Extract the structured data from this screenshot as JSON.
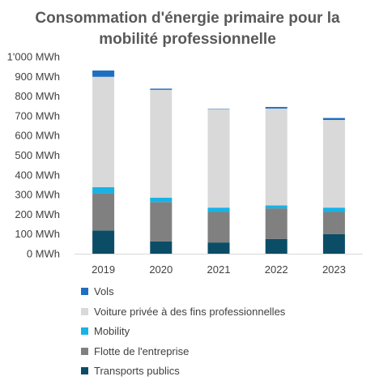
{
  "chart_data": {
    "type": "bar",
    "stacked": true,
    "title": "Consommation d'énergie primaire pour la mobilité professionnelle",
    "title_lines": [
      "Consommation d'énergie primaire pour la",
      "mobilité professionnelle"
    ],
    "categories": [
      "2019",
      "2020",
      "2021",
      "2022",
      "2023"
    ],
    "ylim": [
      0,
      1000
    ],
    "yticks": [
      "0 MWh",
      "100 MWh",
      "200 MWh",
      "300 MWh",
      "400 MWh",
      "500 MWh",
      "600 MWh",
      "700 MWh",
      "800 MWh",
      "900 MWh",
      "1'000 MWh"
    ],
    "grid": false,
    "legend_position": "bottom",
    "series": [
      {
        "name": "Transports publics",
        "color": "#0b4d66",
        "values": [
          118,
          62,
          57,
          75,
          100
        ]
      },
      {
        "name": "Flotte de l'entreprise",
        "color": "#808080",
        "values": [
          190,
          200,
          155,
          155,
          112
        ]
      },
      {
        "name": "Mobility",
        "color": "#17b3e6",
        "values": [
          30,
          22,
          22,
          15,
          22
        ]
      },
      {
        "name": "Voiture privée à des fins professionnelles",
        "color": "#d9d9d9",
        "values": [
          560,
          548,
          500,
          492,
          445
        ]
      },
      {
        "name": "Vols",
        "color": "#1f6fbf",
        "values": [
          32,
          6,
          2,
          8,
          10
        ]
      }
    ]
  }
}
